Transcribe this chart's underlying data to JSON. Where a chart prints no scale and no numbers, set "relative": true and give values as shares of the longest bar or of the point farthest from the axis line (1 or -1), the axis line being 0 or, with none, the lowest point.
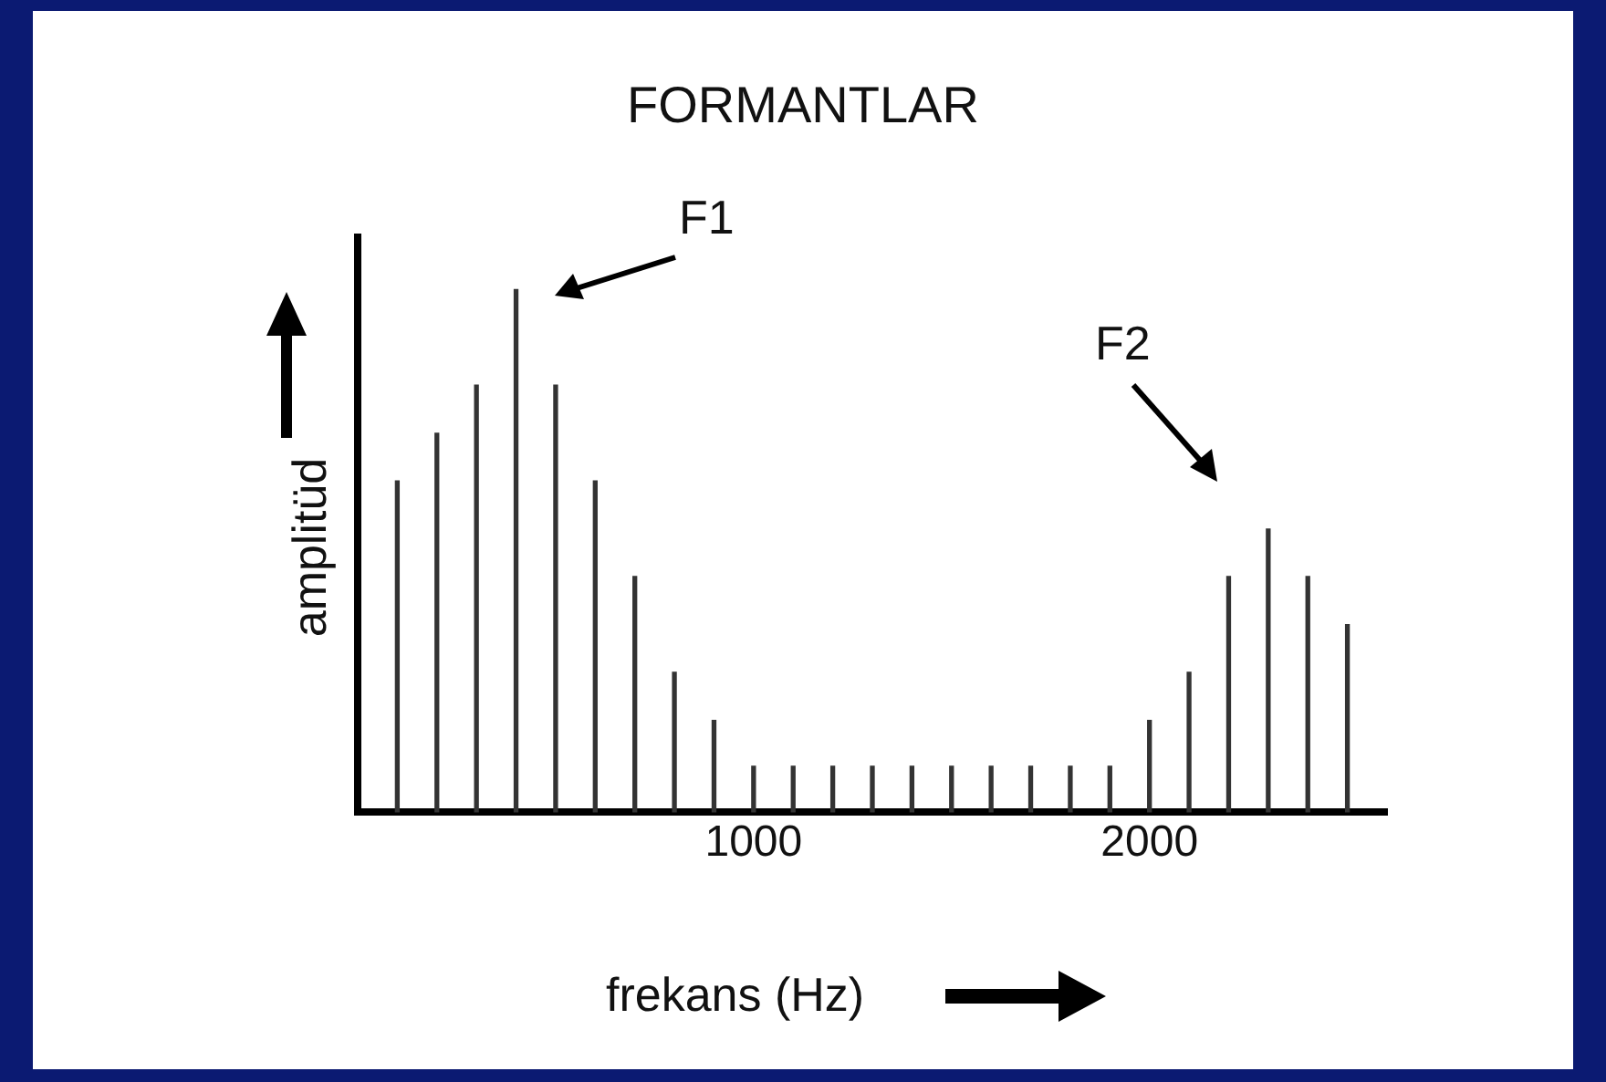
{
  "chart_data": {
    "type": "bar",
    "title": "FORMANTLAR",
    "xlabel": "frekans (Hz)",
    "ylabel": "amplitüd",
    "relative": true,
    "color": "#333333",
    "x": [
      100,
      200,
      300,
      400,
      500,
      600,
      700,
      800,
      900,
      1000,
      1100,
      1200,
      1300,
      1400,
      1500,
      1600,
      1700,
      1800,
      1900,
      2000,
      2100,
      2200,
      2300,
      2400,
      2500
    ],
    "values": [
      0.634,
      0.725,
      0.817,
      1,
      0.817,
      0.634,
      0.451,
      0.268,
      0.176,
      0.088,
      0.088,
      0.088,
      0.088,
      0.088,
      0.088,
      0.088,
      0.088,
      0.088,
      0.088,
      0.176,
      0.268,
      0.451,
      0.542,
      0.451,
      0.359
    ],
    "xlim": [
      0,
      2600
    ],
    "xticks": [
      1000,
      2000
    ],
    "grid": false,
    "legend": false,
    "annotations": [
      "F1",
      "F2"
    ]
  }
}
